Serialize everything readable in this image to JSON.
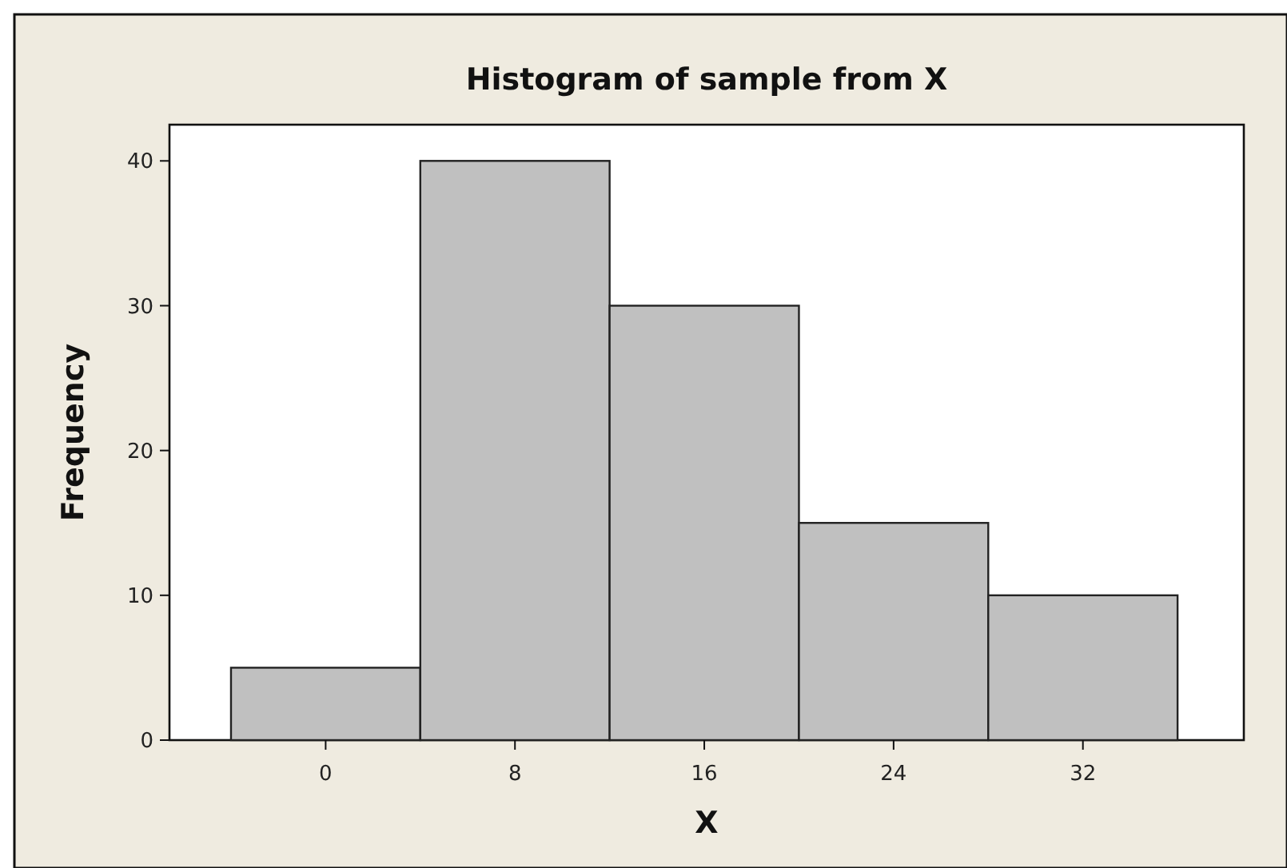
{
  "chart_data": {
    "type": "histogram",
    "title": "Histogram of sample from X",
    "xlabel": "X",
    "ylabel": "Frequency",
    "bins": [
      -4,
      4,
      12,
      20,
      28,
      36
    ],
    "values": [
      5,
      40,
      30,
      15,
      10
    ],
    "color": "#c0c0c0",
    "xlim": [
      -6.6,
      38.8
    ],
    "ylim": [
      0,
      42.5
    ],
    "xticks": [
      0,
      8,
      16,
      24,
      32
    ],
    "yticks": [
      0,
      10,
      20,
      30,
      40
    ],
    "grid": false
  }
}
